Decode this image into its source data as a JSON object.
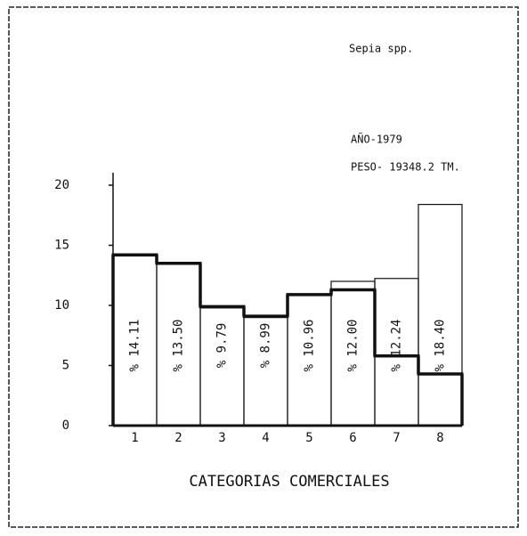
{
  "chart_data": {
    "type": "bar",
    "annotations": [
      "Sepia spp.",
      "AÑO-1979",
      "PESO- 19348.2 TM."
    ],
    "x_label": "CATEGORIAS COMERCIALES",
    "categories": [
      "1",
      "2",
      "3",
      "4",
      "5",
      "6",
      "7",
      "8"
    ],
    "series": [
      {
        "color": "#111111",
        "values": [
          14.11,
          13.5,
          9.79,
          8.99,
          10.96,
          12.0,
          12.24,
          18.4
        ],
        "value_labels": [
          "% 14.11",
          "% 13.50",
          "% 9.79",
          "% 8.99",
          "% 10.96",
          "% 12.00",
          "% 12.24",
          "% 18.40"
        ]
      },
      {
        "type": "step",
        "color": "#111111",
        "values": [
          14.2,
          13.5,
          9.9,
          9.1,
          10.9,
          11.3,
          5.8,
          4.3
        ]
      }
    ],
    "ylim": [
      0,
      20
    ],
    "yticks": [
      0,
      5,
      10,
      15,
      20
    ]
  }
}
